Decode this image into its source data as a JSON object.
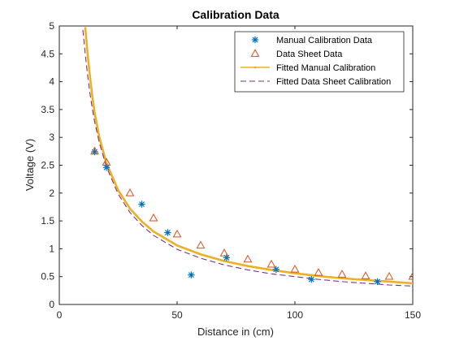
{
  "chart_data": {
    "type": "scatter",
    "title": "Calibration Data",
    "xlabel": "Distance in (cm)",
    "ylabel": "Voltage (V)",
    "xlim": [
      0,
      150
    ],
    "ylim": [
      0,
      5
    ],
    "xticks": [
      "0",
      "50",
      "100",
      "150"
    ],
    "yticks": [
      "0",
      "0.5",
      "1",
      "1.5",
      "2",
      "2.5",
      "3",
      "3.5",
      "4",
      "4.5",
      "5"
    ],
    "grid": false,
    "legend_position": "top-right",
    "series": [
      {
        "name": "Manual Calibration Data",
        "kind": "marker",
        "marker": "asterisk",
        "color": "#0072BD",
        "x": [
          15,
          20,
          35,
          46,
          56,
          71,
          92,
          107,
          135
        ],
        "y": [
          2.74,
          2.46,
          1.8,
          1.29,
          0.53,
          0.84,
          0.63,
          0.45,
          0.41
        ]
      },
      {
        "name": "Data Sheet Data",
        "kind": "marker",
        "marker": "triangle",
        "color": "#D95319",
        "x": [
          15,
          20,
          30,
          40,
          50,
          60,
          70,
          80,
          90,
          100,
          110,
          120,
          130,
          140,
          150
        ],
        "y": [
          2.75,
          2.55,
          2.0,
          1.55,
          1.26,
          1.06,
          0.92,
          0.81,
          0.72,
          0.63,
          0.57,
          0.54,
          0.51,
          0.5,
          0.5
        ]
      },
      {
        "name": "Fitted Manual Calibration",
        "kind": "line",
        "style": "solid-dot",
        "color": "#EDB120",
        "x": [
          11,
          12,
          13,
          14,
          15,
          17,
          20,
          25,
          30,
          35,
          40,
          50,
          60,
          70,
          80,
          90,
          100,
          110,
          120,
          130,
          140,
          150
        ],
        "y": [
          4.98,
          4.5,
          4.1,
          3.74,
          3.44,
          3.0,
          2.54,
          2.05,
          1.72,
          1.49,
          1.31,
          1.06,
          0.9,
          0.78,
          0.69,
          0.62,
          0.56,
          0.51,
          0.47,
          0.44,
          0.41,
          0.38
        ]
      },
      {
        "name": "Fitted Data Sheet Calibration",
        "kind": "line",
        "style": "dashed",
        "color": "#7E2F8E",
        "x": [
          10,
          11,
          12,
          13,
          14,
          15,
          17,
          20,
          25,
          30,
          35,
          40,
          50,
          60,
          70,
          80,
          90,
          100,
          110,
          120,
          130,
          140,
          150
        ],
        "y": [
          4.93,
          4.5,
          4.12,
          3.79,
          3.52,
          3.28,
          2.9,
          2.47,
          1.98,
          1.65,
          1.42,
          1.24,
          0.99,
          0.83,
          0.71,
          0.62,
          0.55,
          0.5,
          0.45,
          0.41,
          0.38,
          0.35,
          0.33
        ]
      }
    ]
  }
}
